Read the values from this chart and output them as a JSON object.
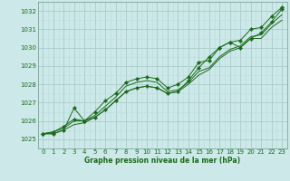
{
  "title": "Graphe pression niveau de la mer (hPa)",
  "background_color": "#cce8e8",
  "grid_major_color": "#aacccc",
  "grid_minor_color": "#bbdddd",
  "line_color": "#1a6b1a",
  "xlim": [
    -0.5,
    23.5
  ],
  "ylim": [
    1024.5,
    1032.5
  ],
  "yticks": [
    1025,
    1026,
    1027,
    1028,
    1029,
    1030,
    1031,
    1032
  ],
  "xticks": [
    0,
    1,
    2,
    3,
    4,
    5,
    6,
    7,
    8,
    9,
    10,
    11,
    12,
    13,
    14,
    15,
    16,
    17,
    18,
    19,
    20,
    21,
    22,
    23
  ],
  "series": [
    [
      1025.3,
      1025.4,
      1025.7,
      1026.1,
      1026.0,
      1026.5,
      1027.1,
      1027.5,
      1028.1,
      1028.3,
      1028.4,
      1028.3,
      1027.8,
      1028.0,
      1028.4,
      1029.2,
      1029.3,
      1030.0,
      1030.3,
      1030.4,
      1031.0,
      1031.1,
      1031.7,
      1032.2
    ],
    [
      1025.3,
      1025.4,
      1025.6,
      1026.0,
      1026.0,
      1026.3,
      1026.8,
      1027.3,
      1027.9,
      1028.1,
      1028.2,
      1028.1,
      1027.6,
      1027.7,
      1028.1,
      1028.7,
      1028.9,
      1029.5,
      1029.9,
      1030.1,
      1030.6,
      1030.7,
      1031.3,
      1031.8
    ],
    [
      1025.3,
      1025.3,
      1025.5,
      1025.8,
      1025.9,
      1026.2,
      1026.6,
      1027.1,
      1027.6,
      1027.8,
      1027.9,
      1027.8,
      1027.5,
      1027.6,
      1028.0,
      1028.5,
      1028.8,
      1029.4,
      1029.8,
      1030.0,
      1030.5,
      1030.5,
      1031.1,
      1031.5
    ],
    [
      1025.3,
      1025.3,
      1025.5,
      1026.7,
      1026.0,
      1026.2,
      1026.6,
      1027.1,
      1027.6,
      1027.8,
      1027.9,
      1027.8,
      1027.5,
      1027.6,
      1028.2,
      1028.9,
      1029.5,
      1030.0,
      1030.3,
      1030.0,
      1030.5,
      1030.8,
      1031.4,
      1032.1
    ]
  ],
  "marker_series": [
    0,
    3
  ],
  "marker": "D",
  "marker_size": 2.2,
  "lw": 0.7,
  "tick_fontsize": 5.0,
  "xlabel_fontsize": 5.5
}
